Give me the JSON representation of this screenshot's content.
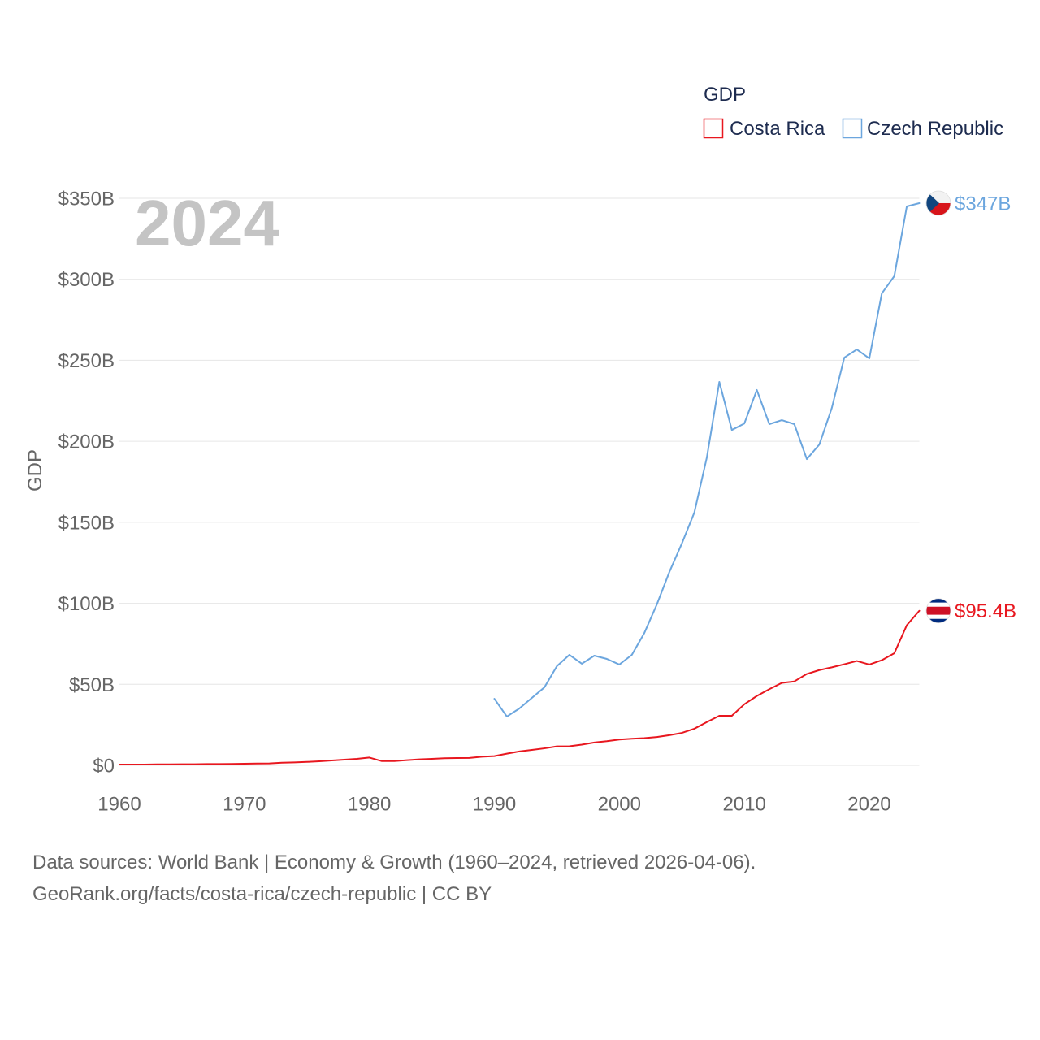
{
  "chart_data": {
    "type": "line",
    "legend_title": "GDP",
    "legend_position": "top-right",
    "ylabel": "GDP",
    "xlabel": "",
    "year_label": "2024",
    "xlim": [
      1960,
      2024
    ],
    "ylim": [
      0,
      350
    ],
    "grid": true,
    "x_ticks": [
      1960,
      1970,
      1980,
      1990,
      2000,
      2010,
      2020
    ],
    "x_tick_labels": [
      "1960",
      "1970",
      "1980",
      "1990",
      "2000",
      "2010",
      "2020"
    ],
    "y_ticks": [
      0,
      50,
      100,
      150,
      200,
      250,
      300,
      350
    ],
    "y_tick_labels": [
      "$0",
      "$50B",
      "$100B",
      "$150B",
      "$200B",
      "$250B",
      "$300B",
      "$350B"
    ],
    "series": [
      {
        "name": "Costa Rica",
        "color": "#e8171f",
        "flag_icon": "costa-rica-flag-icon",
        "end_label": "$95.4B",
        "x": [
          1960,
          1961,
          1962,
          1963,
          1964,
          1965,
          1966,
          1967,
          1968,
          1969,
          1970,
          1971,
          1972,
          1973,
          1974,
          1975,
          1976,
          1977,
          1978,
          1979,
          1980,
          1981,
          1982,
          1983,
          1984,
          1985,
          1986,
          1987,
          1988,
          1989,
          1990,
          1991,
          1992,
          1993,
          1994,
          1995,
          1996,
          1997,
          1998,
          1999,
          2000,
          2001,
          2002,
          2003,
          2004,
          2005,
          2006,
          2007,
          2008,
          2009,
          2010,
          2011,
          2012,
          2013,
          2014,
          2015,
          2016,
          2017,
          2018,
          2019,
          2020,
          2021,
          2022,
          2023,
          2024
        ],
        "y": [
          0.5,
          0.5,
          0.5,
          0.6,
          0.6,
          0.7,
          0.7,
          0.8,
          0.8,
          0.9,
          1.0,
          1.1,
          1.2,
          1.6,
          1.8,
          2.1,
          2.5,
          3.0,
          3.5,
          4.0,
          4.8,
          2.6,
          2.6,
          3.2,
          3.7,
          4.0,
          4.4,
          4.5,
          4.6,
          5.3,
          5.7,
          7.2,
          8.6,
          9.5,
          10.5,
          11.7,
          11.8,
          12.8,
          14.1,
          14.9,
          15.9,
          16.4,
          16.8,
          17.5,
          18.6,
          20.0,
          22.6,
          26.7,
          30.6,
          30.6,
          37.7,
          42.8,
          47.0,
          50.9,
          51.8,
          56.4,
          58.8,
          60.5,
          62.4,
          64.4,
          62.2,
          64.9,
          69.2,
          86.5,
          95.4
        ]
      },
      {
        "name": "Czech Republic",
        "color": "#6ca6de",
        "flag_icon": "czech-flag-icon",
        "end_label": "$347B",
        "x": [
          1990,
          1991,
          1992,
          1993,
          1994,
          1995,
          1996,
          1997,
          1998,
          1999,
          2000,
          2001,
          2002,
          2003,
          2004,
          2005,
          2006,
          2007,
          2008,
          2009,
          2010,
          2011,
          2012,
          2013,
          2014,
          2015,
          2016,
          2017,
          2018,
          2019,
          2020,
          2021,
          2022,
          2023,
          2024
        ],
        "y": [
          41.1,
          30.1,
          35.1,
          41.6,
          48.1,
          61.2,
          68.2,
          62.7,
          67.7,
          65.7,
          62.2,
          68.2,
          81.7,
          99.3,
          119.3,
          136.9,
          156.0,
          190.0,
          236.7,
          207.0,
          211.0,
          231.7,
          210.6,
          213.1,
          210.6,
          189.0,
          198.0,
          220.6,
          251.7,
          256.7,
          251.2,
          291.3,
          302.0,
          345.0,
          347.0
        ]
      }
    ]
  },
  "footer": {
    "sources": "Data sources: World Bank | Economy & Growth (1960–2024, retrieved 2026-04-06).",
    "credit": "GeoRank.org/facts/costa-rica/czech-republic | CC BY"
  }
}
